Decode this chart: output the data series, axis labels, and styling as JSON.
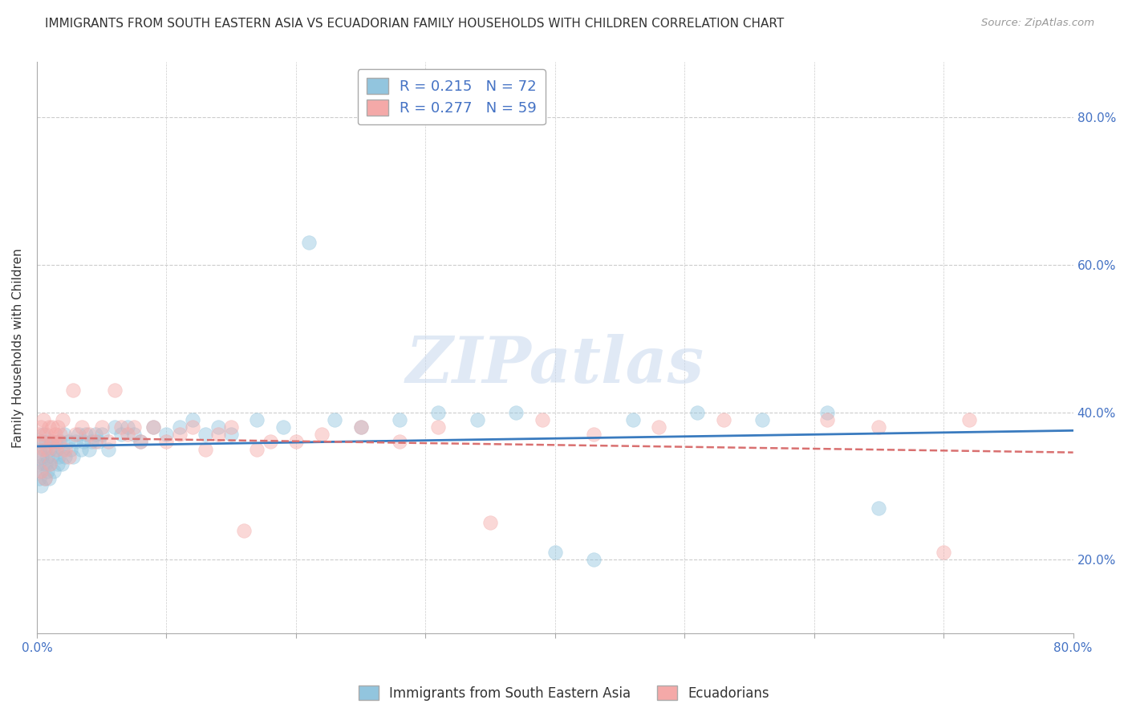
{
  "title": "IMMIGRANTS FROM SOUTH EASTERN ASIA VS ECUADORIAN FAMILY HOUSEHOLDS WITH CHILDREN CORRELATION CHART",
  "source": "Source: ZipAtlas.com",
  "ylabel": "Family Households with Children",
  "x_min": 0.0,
  "x_max": 0.8,
  "y_min": 0.1,
  "y_max": 0.875,
  "x_ticks": [
    0.0,
    0.1,
    0.2,
    0.3,
    0.4,
    0.5,
    0.6,
    0.7,
    0.8
  ],
  "x_tick_labels_show": [
    "0.0%",
    "",
    "",
    "",
    "",
    "",
    "",
    "",
    "80.0%"
  ],
  "y_ticks": [
    0.2,
    0.4,
    0.6,
    0.8
  ],
  "y_tick_labels": [
    "20.0%",
    "40.0%",
    "60.0%",
    "80.0%"
  ],
  "R_blue": 0.215,
  "N_blue": 72,
  "R_pink": 0.277,
  "N_pink": 59,
  "blue_scatter_color": "#92c5de",
  "pink_scatter_color": "#f4a9a8",
  "blue_line_color": "#3a7bbf",
  "pink_line_color": "#d97070",
  "legend_label_blue": "Immigrants from South Eastern Asia",
  "legend_label_pink": "Ecuadorians",
  "watermark": "ZIPatlas",
  "background_color": "#ffffff",
  "grid_color": "#cccccc",
  "title_color": "#333333",
  "axis_label_color": "#333333",
  "tick_label_color": "#4472c4",
  "blue_x_data": [
    0.001,
    0.002,
    0.002,
    0.003,
    0.003,
    0.004,
    0.004,
    0.005,
    0.005,
    0.006,
    0.006,
    0.007,
    0.007,
    0.008,
    0.008,
    0.009,
    0.01,
    0.01,
    0.011,
    0.012,
    0.013,
    0.014,
    0.015,
    0.016,
    0.017,
    0.018,
    0.019,
    0.02,
    0.021,
    0.022,
    0.024,
    0.026,
    0.028,
    0.03,
    0.032,
    0.034,
    0.036,
    0.038,
    0.04,
    0.042,
    0.045,
    0.048,
    0.05,
    0.055,
    0.06,
    0.065,
    0.07,
    0.075,
    0.08,
    0.09,
    0.1,
    0.11,
    0.12,
    0.13,
    0.14,
    0.15,
    0.17,
    0.19,
    0.21,
    0.23,
    0.25,
    0.28,
    0.31,
    0.34,
    0.37,
    0.4,
    0.43,
    0.46,
    0.51,
    0.56,
    0.61,
    0.65
  ],
  "blue_y_data": [
    0.33,
    0.31,
    0.35,
    0.32,
    0.3,
    0.34,
    0.36,
    0.33,
    0.37,
    0.31,
    0.35,
    0.33,
    0.36,
    0.32,
    0.34,
    0.31,
    0.35,
    0.33,
    0.36,
    0.34,
    0.32,
    0.36,
    0.35,
    0.33,
    0.34,
    0.36,
    0.33,
    0.35,
    0.37,
    0.34,
    0.36,
    0.35,
    0.34,
    0.36,
    0.37,
    0.35,
    0.36,
    0.37,
    0.35,
    0.36,
    0.37,
    0.36,
    0.37,
    0.35,
    0.38,
    0.37,
    0.38,
    0.37,
    0.36,
    0.38,
    0.37,
    0.38,
    0.39,
    0.37,
    0.38,
    0.37,
    0.39,
    0.38,
    0.63,
    0.39,
    0.38,
    0.39,
    0.4,
    0.39,
    0.4,
    0.21,
    0.2,
    0.39,
    0.4,
    0.39,
    0.4,
    0.27
  ],
  "pink_x_data": [
    0.001,
    0.002,
    0.003,
    0.003,
    0.004,
    0.005,
    0.005,
    0.006,
    0.007,
    0.008,
    0.009,
    0.01,
    0.011,
    0.012,
    0.013,
    0.014,
    0.015,
    0.016,
    0.017,
    0.018,
    0.02,
    0.022,
    0.025,
    0.028,
    0.03,
    0.035,
    0.04,
    0.045,
    0.05,
    0.055,
    0.06,
    0.065,
    0.07,
    0.075,
    0.08,
    0.09,
    0.1,
    0.11,
    0.12,
    0.13,
    0.14,
    0.15,
    0.16,
    0.17,
    0.18,
    0.2,
    0.22,
    0.25,
    0.28,
    0.31,
    0.35,
    0.39,
    0.43,
    0.48,
    0.53,
    0.61,
    0.65,
    0.7,
    0.72
  ],
  "pink_y_data": [
    0.34,
    0.37,
    0.38,
    0.32,
    0.36,
    0.35,
    0.39,
    0.31,
    0.37,
    0.35,
    0.38,
    0.33,
    0.36,
    0.38,
    0.36,
    0.37,
    0.35,
    0.38,
    0.36,
    0.37,
    0.39,
    0.35,
    0.34,
    0.43,
    0.37,
    0.38,
    0.37,
    0.36,
    0.38,
    0.36,
    0.43,
    0.38,
    0.37,
    0.38,
    0.36,
    0.38,
    0.36,
    0.37,
    0.38,
    0.35,
    0.37,
    0.38,
    0.24,
    0.35,
    0.36,
    0.36,
    0.37,
    0.38,
    0.36,
    0.38,
    0.25,
    0.39,
    0.37,
    0.38,
    0.39,
    0.39,
    0.38,
    0.21,
    0.39
  ]
}
